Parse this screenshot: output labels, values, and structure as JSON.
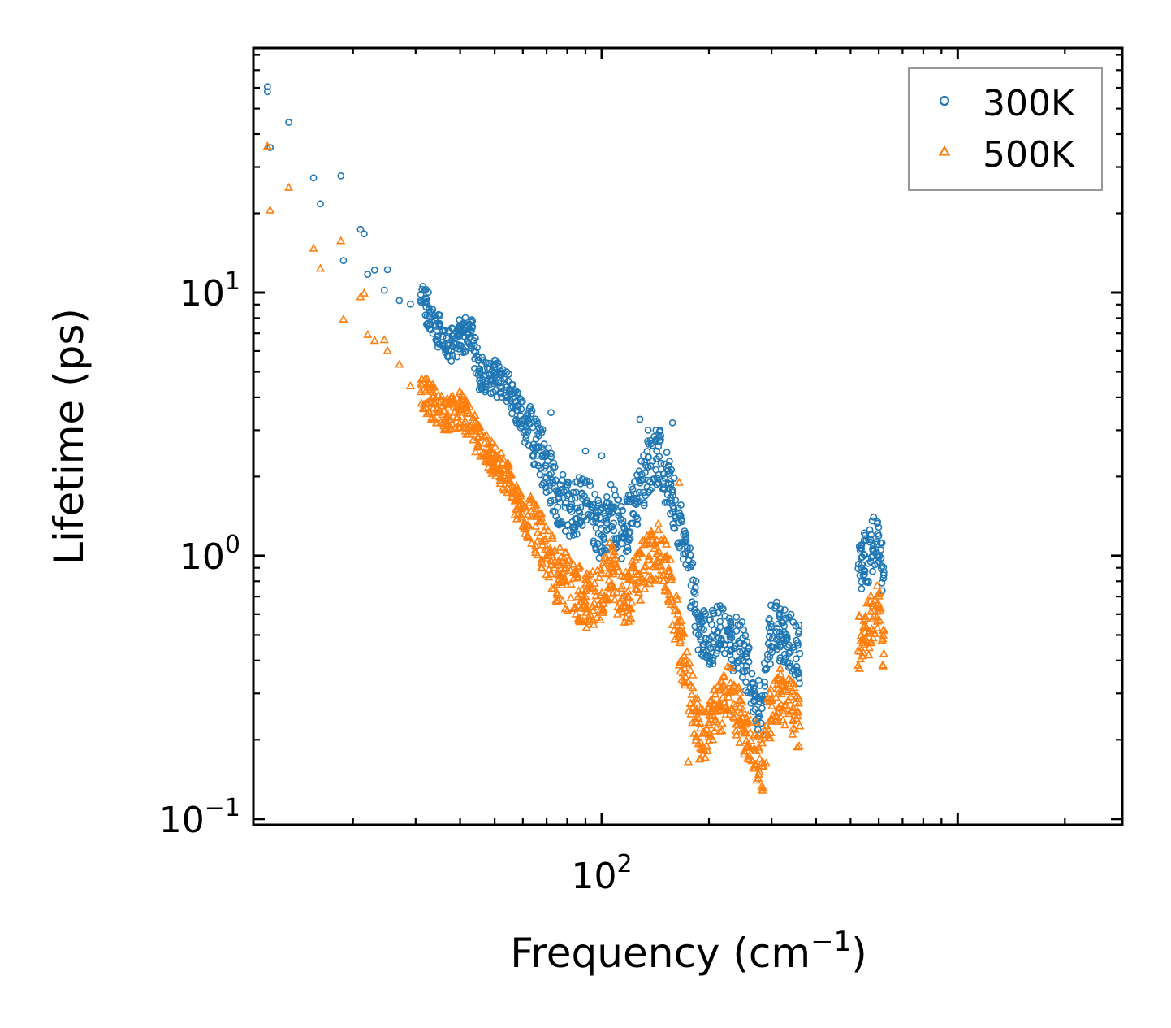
{
  "chart_data": {
    "type": "scatter",
    "title": "",
    "xlabel": "Frequency (cm",
    "xlabel_superscript": "−1",
    "xlabel_close": ")",
    "ylabel": "Lifetime (ps)",
    "x_scale": "log",
    "y_scale": "log",
    "xlim": [
      10.5,
      2900
    ],
    "ylim": [
      0.095,
      85
    ],
    "grid": false,
    "legend_position": "top-right",
    "x_major_ticks": [
      {
        "value": 100,
        "base": "10",
        "exp": "2"
      }
    ],
    "y_major_ticks": [
      {
        "value": 0.1,
        "base": "10",
        "exp": "−1"
      },
      {
        "value": 1,
        "base": "10",
        "exp": "0"
      },
      {
        "value": 10,
        "base": "10",
        "exp": "1"
      }
    ],
    "colors": {
      "300K": "#1f77b4",
      "500K": "#ff7f0e"
    },
    "series": [
      {
        "name": "300K",
        "marker": "circle",
        "key_points": [
          [
            11.5,
            60
          ],
          [
            11.7,
            36
          ],
          [
            13.2,
            44
          ],
          [
            15.5,
            26.5
          ],
          [
            16.2,
            21.5
          ],
          [
            18.5,
            27.5
          ],
          [
            18.8,
            13.5
          ],
          [
            21,
            17
          ],
          [
            21.5,
            16.5
          ],
          [
            22,
            11.5
          ],
          [
            23,
            12
          ],
          [
            24.5,
            10.3
          ],
          [
            25,
            12
          ],
          [
            27,
            9.5
          ],
          [
            29,
            9.0
          ],
          [
            31,
            10
          ],
          [
            33,
            8.2
          ],
          [
            37,
            6.2
          ],
          [
            40,
            6.8
          ],
          [
            43,
            7.0
          ],
          [
            45,
            5.0
          ],
          [
            50,
            4.8
          ],
          [
            55,
            4.2
          ],
          [
            58,
            3.6
          ],
          [
            62,
            3.0
          ],
          [
            68,
            2.4
          ],
          [
            75,
            1.7
          ],
          [
            82,
            1.5
          ],
          [
            90,
            1.6
          ],
          [
            100,
            1.2
          ],
          [
            106,
            1.5
          ],
          [
            115,
            1.2
          ],
          [
            125,
            1.6
          ],
          [
            135,
            2.2
          ],
          [
            145,
            2.4
          ],
          [
            155,
            1.8
          ],
          [
            165,
            1.3
          ],
          [
            175,
            0.9
          ],
          [
            185,
            0.6
          ],
          [
            190,
            0.5
          ],
          [
            200,
            0.46
          ],
          [
            215,
            0.55
          ],
          [
            230,
            0.45
          ],
          [
            245,
            0.47
          ],
          [
            255,
            0.38
          ],
          [
            268,
            0.3
          ],
          [
            282,
            0.26
          ],
          [
            300,
            0.55
          ],
          [
            320,
            0.5
          ],
          [
            345,
            0.46
          ],
          [
            360,
            0.42
          ],
          [
            525,
            0.9
          ],
          [
            545,
            1.0
          ],
          [
            560,
            0.95
          ],
          [
            580,
            1.1
          ],
          [
            600,
            1.2
          ],
          [
            620,
            0.85
          ]
        ],
        "outliers": [
          [
            11.5,
            58
          ],
          [
            128,
            3.3
          ],
          [
            135,
            3.0
          ],
          [
            142,
            3.0
          ],
          [
            158,
            3.2
          ],
          [
            72,
            3.5
          ],
          [
            90,
            2.5
          ],
          [
            100,
            2.4
          ]
        ]
      },
      {
        "name": "500K",
        "marker": "triangle",
        "key_points": [
          [
            11.5,
            35
          ],
          [
            11.7,
            21
          ],
          [
            13.2,
            25
          ],
          [
            15.5,
            14.5
          ],
          [
            16.2,
            12
          ],
          [
            18.5,
            15.5
          ],
          [
            18.8,
            7.8
          ],
          [
            21,
            9.5
          ],
          [
            21.5,
            9.8
          ],
          [
            22,
            7.0
          ],
          [
            23,
            6.5
          ],
          [
            24.5,
            6.8
          ],
          [
            25,
            6.0
          ],
          [
            27,
            5.2
          ],
          [
            29,
            4.5
          ],
          [
            31,
            4.2
          ],
          [
            33,
            3.9
          ],
          [
            37,
            3.4
          ],
          [
            40,
            3.6
          ],
          [
            43,
            3.1
          ],
          [
            45,
            2.8
          ],
          [
            50,
            2.3
          ],
          [
            55,
            1.9
          ],
          [
            58,
            1.55
          ],
          [
            62,
            1.35
          ],
          [
            68,
            1.15
          ],
          [
            75,
            0.85
          ],
          [
            82,
            0.78
          ],
          [
            90,
            0.68
          ],
          [
            100,
            0.72
          ],
          [
            106,
            0.9
          ],
          [
            115,
            0.66
          ],
          [
            125,
            0.8
          ],
          [
            135,
            0.98
          ],
          [
            145,
            1.05
          ],
          [
            155,
            0.8
          ],
          [
            165,
            0.48
          ],
          [
            175,
            0.33
          ],
          [
            185,
            0.24
          ],
          [
            190,
            0.2
          ],
          [
            200,
            0.23
          ],
          [
            215,
            0.26
          ],
          [
            230,
            0.32
          ],
          [
            245,
            0.24
          ],
          [
            255,
            0.2
          ],
          [
            268,
            0.19
          ],
          [
            282,
            0.16
          ],
          [
            300,
            0.28
          ],
          [
            320,
            0.3
          ],
          [
            345,
            0.26
          ],
          [
            360,
            0.23
          ],
          [
            525,
            0.45
          ],
          [
            545,
            0.55
          ],
          [
            560,
            0.5
          ],
          [
            580,
            0.6
          ],
          [
            600,
            0.65
          ],
          [
            620,
            0.42
          ]
        ],
        "outliers": [
          [
            11.5,
            36
          ],
          [
            165,
            1.9
          ],
          [
            190,
            0.17
          ],
          [
            175,
            0.165
          ]
        ]
      }
    ]
  }
}
